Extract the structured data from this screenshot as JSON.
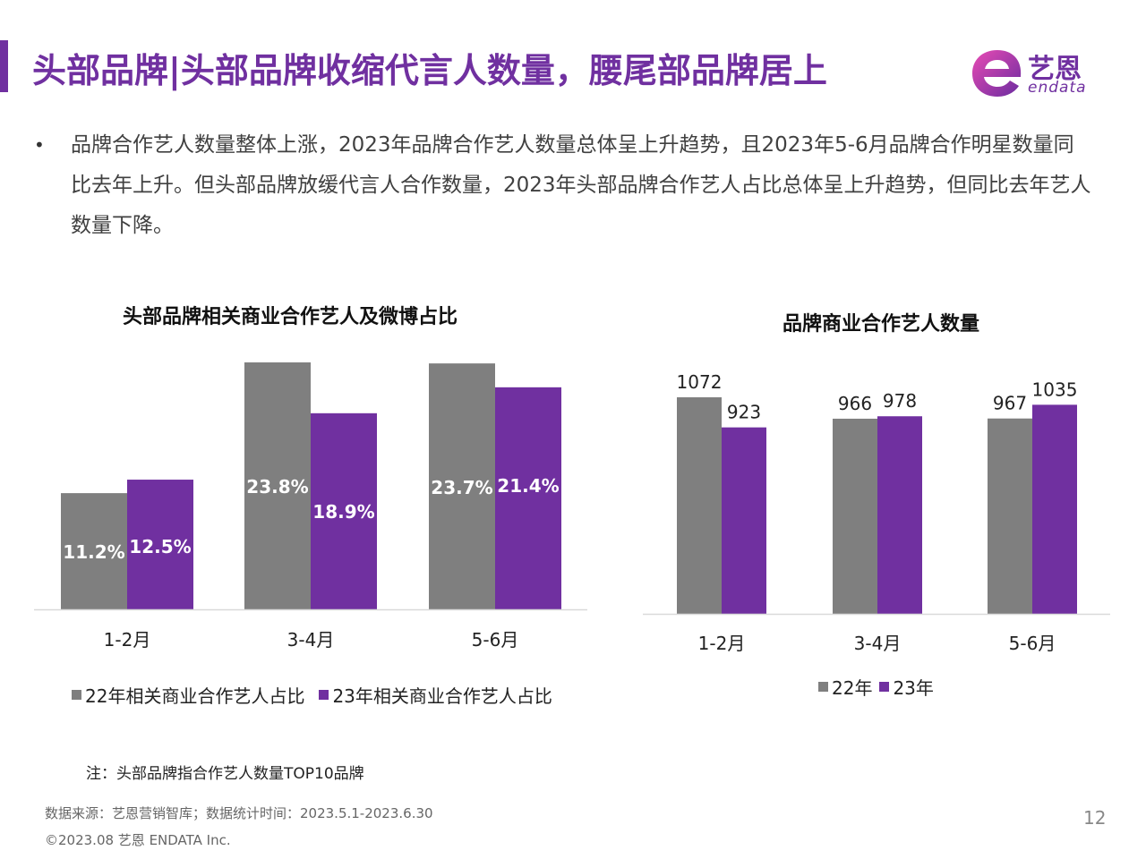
{
  "header": {
    "title": "头部品牌|头部品牌收缩代言人数量，腰尾部品牌居上",
    "logo_cn": "艺恩",
    "logo_en": "endata",
    "logo_icon": "endata-e-logo-icon"
  },
  "intro_text": "品牌合作艺人数量整体上涨，2023年品牌合作艺人数量总体呈上升趋势，且2023年5-6月品牌合作明星数量同比去年上升。但头部品牌放缓代言人合作数量，2023年头部品牌合作艺人占比总体呈上升趋势，但同比去年艺人数量下降。",
  "colors": {
    "accent": "#7030A0",
    "gray": "#7F7F7F",
    "axis": "#D9D9D9"
  },
  "chart_data": [
    {
      "type": "bar",
      "title": "头部品牌相关商业合作艺人及微博占比",
      "categories": [
        "1-2月",
        "3-4月",
        "5-6月"
      ],
      "series": [
        {
          "name": "22年相关商业合作艺人占比",
          "values": [
            11.2,
            23.8,
            23.7
          ],
          "labels": [
            "11.2%",
            "23.8%",
            "23.7%"
          ]
        },
        {
          "name": "23年相关商业合作艺人占比",
          "values": [
            12.5,
            18.9,
            21.4
          ],
          "labels": [
            "12.5%",
            "18.9%",
            "21.4%"
          ]
        }
      ],
      "ylim": [
        0,
        24.5
      ],
      "legend": "bottom",
      "grid": false
    },
    {
      "type": "bar",
      "title": "品牌商业合作艺人数量",
      "categories": [
        "1-2月",
        "3-4月",
        "5-6月"
      ],
      "series": [
        {
          "name": "22年",
          "values": [
            1072,
            966,
            967
          ],
          "labels": [
            "1072",
            "966",
            "967"
          ]
        },
        {
          "name": "23年",
          "values": [
            923,
            978,
            1035
          ],
          "labels": [
            "923",
            "978",
            "1035"
          ]
        }
      ],
      "ylim": [
        0,
        1570
      ],
      "legend": "bottom",
      "grid": false
    }
  ],
  "note": "注：头部品牌指合作艺人数量TOP10品牌",
  "footer": {
    "source": "数据来源：艺恩营销智库；数据统计时间：2023.5.1-2023.6.30",
    "copyright": "©2023.08 艺恩 ENDATA Inc.",
    "page_number": "12"
  }
}
